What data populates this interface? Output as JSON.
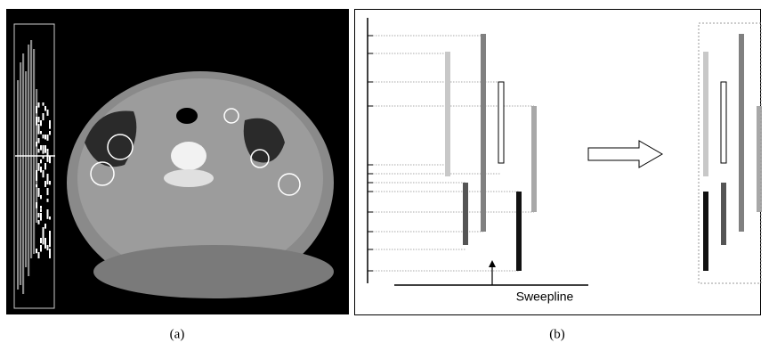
{
  "panel_a": {
    "caption": "(a)"
  },
  "panel_b": {
    "caption": "(b)",
    "sweepline_label": "Sweepline"
  }
}
